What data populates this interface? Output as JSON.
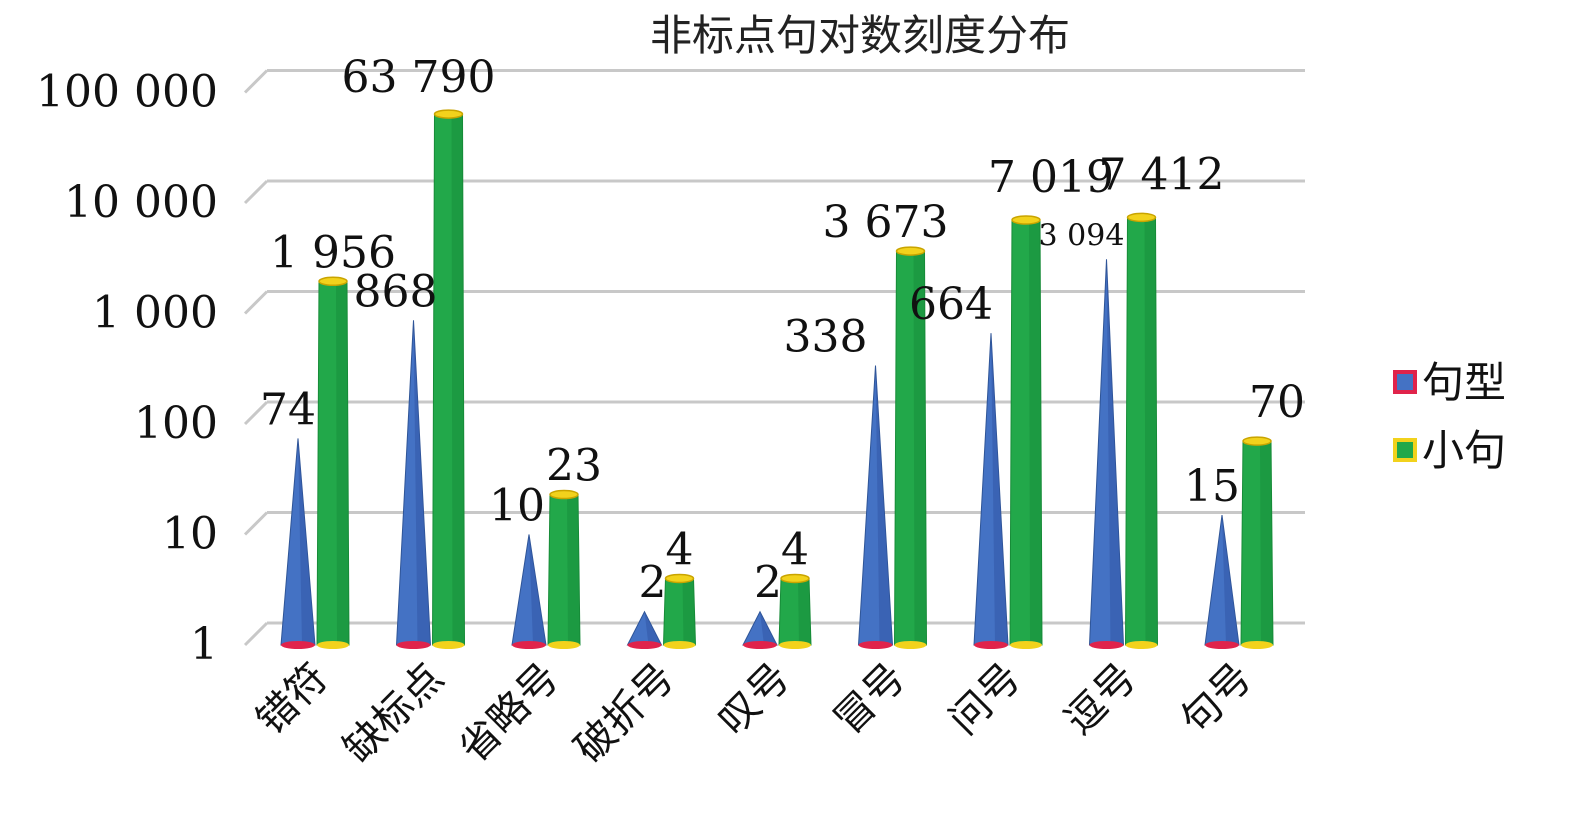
{
  "chart_data": {
    "type": "bar",
    "title": "非标点句对数刻度分布",
    "scale": "log",
    "ylim": [
      1,
      100000
    ],
    "grid": true,
    "legend_position": "right",
    "y_ticks": [
      "1",
      "10",
      "100",
      "1 000",
      "10 000",
      "100 000"
    ],
    "y_tick_values": [
      1,
      10,
      100,
      1000,
      10000,
      100000
    ],
    "categories": [
      "错符",
      "缺标点",
      "省略号",
      "破折号",
      "叹号",
      "冒号",
      "问号",
      "逗号",
      "句号"
    ],
    "series": [
      {
        "name": "句型",
        "color": "#4472c4",
        "shape": "cone",
        "values": [
          74,
          868,
          10,
          2,
          2,
          338,
          664,
          3094,
          15
        ],
        "labels": [
          "74",
          "868",
          "10",
          "2",
          "2",
          "338",
          "664",
          "3 094",
          "15"
        ]
      },
      {
        "name": "小句",
        "color": "#22a84a",
        "shape": "cylinder",
        "values": [
          1956,
          63790,
          23,
          4,
          4,
          3673,
          7019,
          7412,
          70
        ],
        "labels": [
          "1 956",
          "63 790",
          "23",
          "4",
          "4",
          "3 673",
          "7 019",
          "7 412",
          "70"
        ]
      }
    ]
  }
}
